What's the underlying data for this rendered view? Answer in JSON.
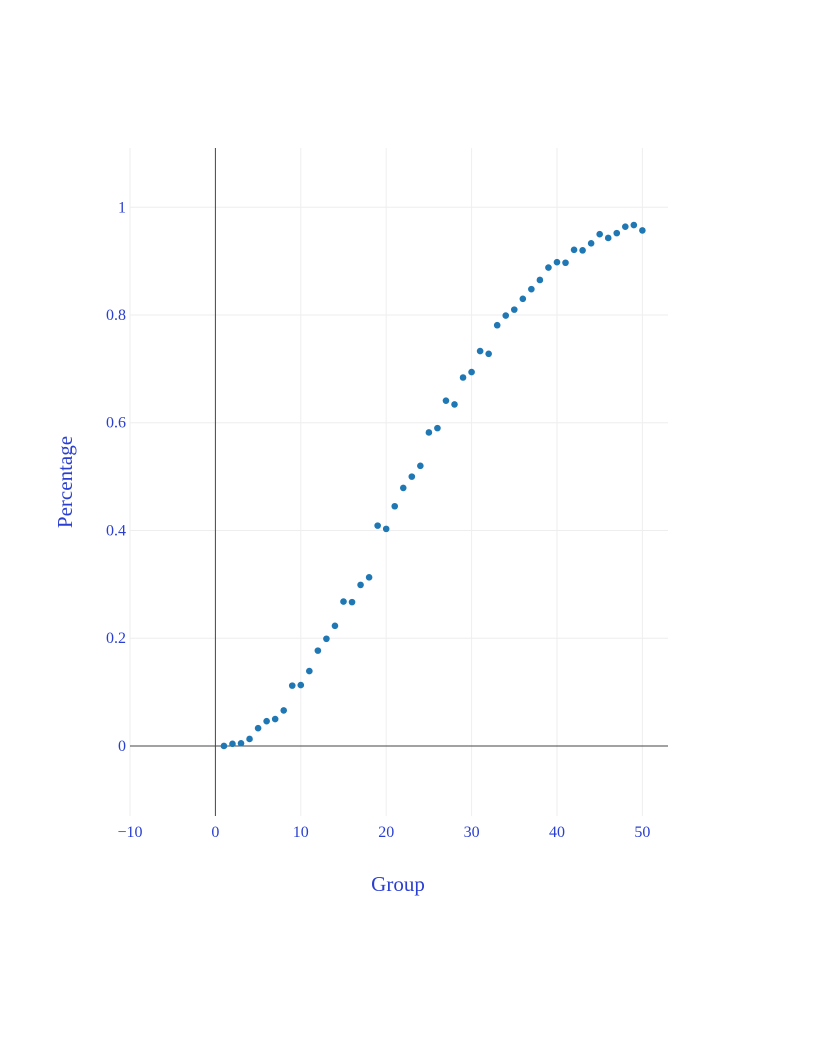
{
  "chart_data": {
    "type": "scatter",
    "title": "",
    "xlabel": "Group",
    "ylabel": "Percentage",
    "xlim": [
      -10,
      53
    ],
    "ylim": [
      -0.13,
      1.11
    ],
    "xticks": [
      -10,
      0,
      10,
      20,
      30,
      40,
      50
    ],
    "xtick_labels": [
      "−10",
      "0",
      "10",
      "20",
      "30",
      "40",
      "50"
    ],
    "yticks": [
      0,
      0.2,
      0.4,
      0.6,
      0.8,
      1
    ],
    "ytick_labels": [
      "0",
      "0.2",
      "0.4",
      "0.6",
      "0.8",
      "1"
    ],
    "grid": true,
    "zero_lines": true,
    "colors": {
      "marker": "#1f77b4",
      "text": "#2a3fd1",
      "grid": "#eeeeee",
      "zeroline": "#444444"
    },
    "series": [
      {
        "name": "Percentage",
        "x": [
          1,
          2,
          3,
          4,
          5,
          6,
          7,
          8,
          9,
          10,
          11,
          12,
          13,
          14,
          15,
          16,
          17,
          18,
          19,
          20,
          21,
          22,
          23,
          24,
          25,
          26,
          27,
          28,
          29,
          30,
          31,
          32,
          33,
          34,
          35,
          36,
          37,
          38,
          39,
          40,
          41,
          42,
          43,
          44,
          45,
          46,
          47,
          48,
          49,
          50
        ],
        "y": [
          0.0,
          0.004,
          0.005,
          0.013,
          0.033,
          0.046,
          0.05,
          0.066,
          0.112,
          0.113,
          0.139,
          0.177,
          0.199,
          0.223,
          0.268,
          0.267,
          0.299,
          0.313,
          0.409,
          0.403,
          0.445,
          0.479,
          0.5,
          0.52,
          0.582,
          0.59,
          0.641,
          0.634,
          0.684,
          0.694,
          0.733,
          0.728,
          0.781,
          0.799,
          0.81,
          0.83,
          0.848,
          0.865,
          0.888,
          0.898,
          0.897,
          0.921,
          0.92,
          0.933,
          0.95,
          0.943,
          0.952,
          0.964,
          0.967,
          0.957
        ]
      }
    ]
  }
}
